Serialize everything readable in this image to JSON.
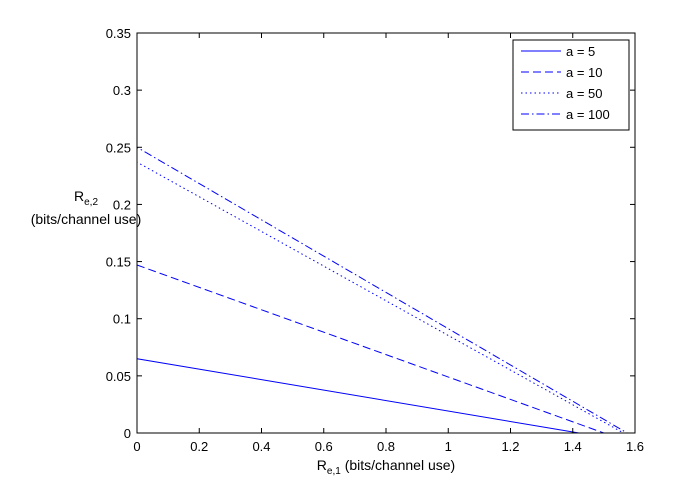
{
  "chart_data": {
    "type": "line",
    "title": "",
    "xlabel": {
      "base": "R",
      "sub": "e,1",
      "rest": " (bits/channel use)"
    },
    "ylabel": {
      "base": "R",
      "sub": "e,2",
      "line2": "(bits/channel use)"
    },
    "xlim": [
      0,
      1.6
    ],
    "ylim": [
      0,
      0.35
    ],
    "xticks": [
      {
        "value": 0,
        "label": "0"
      },
      {
        "value": 0.2,
        "label": "0.2"
      },
      {
        "value": 0.4,
        "label": "0.4"
      },
      {
        "value": 0.6,
        "label": "0.6"
      },
      {
        "value": 0.8,
        "label": "0.8"
      },
      {
        "value": 1.0,
        "label": "1"
      },
      {
        "value": 1.2,
        "label": "1.2"
      },
      {
        "value": 1.4,
        "label": "1.4"
      },
      {
        "value": 1.6,
        "label": "1.6"
      }
    ],
    "yticks": [
      {
        "value": 0,
        "label": "0"
      },
      {
        "value": 0.05,
        "label": "0.05"
      },
      {
        "value": 0.1,
        "label": "0.1"
      },
      {
        "value": 0.15,
        "label": "0.15"
      },
      {
        "value": 0.2,
        "label": "0.2"
      },
      {
        "value": 0.25,
        "label": "0.25"
      },
      {
        "value": 0.3,
        "label": "0.3"
      },
      {
        "value": 0.35,
        "label": "0.35"
      }
    ],
    "grid": false,
    "legend_position": "top-right",
    "series": [
      {
        "name": "a = 5",
        "style": "solid",
        "color": "#0000ff",
        "points": [
          [
            0,
            0
          ],
          [
            0,
            0.065
          ],
          [
            1.42,
            0
          ],
          [
            0,
            0
          ]
        ]
      },
      {
        "name": "a = 10",
        "style": "dashed",
        "color": "#0000ff",
        "points": [
          [
            0,
            0
          ],
          [
            0,
            0.147
          ],
          [
            1.5,
            0
          ],
          [
            0,
            0
          ]
        ]
      },
      {
        "name": "a = 50",
        "style": "dotted",
        "color": "#0000ff",
        "points": [
          [
            0,
            0
          ],
          [
            0,
            0.237
          ],
          [
            1.563,
            0
          ],
          [
            0,
            0
          ]
        ]
      },
      {
        "name": "a = 100",
        "style": "dashdot",
        "color": "#0000ff",
        "points": [
          [
            0,
            0
          ],
          [
            0,
            0.25
          ],
          [
            1.575,
            0
          ],
          [
            0,
            0
          ]
        ]
      }
    ]
  }
}
